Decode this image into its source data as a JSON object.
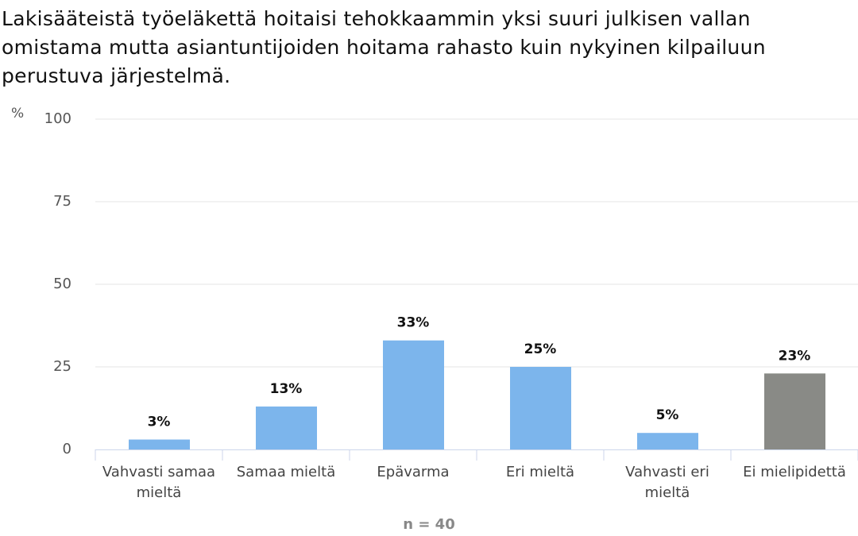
{
  "chart_data": {
    "type": "bar",
    "title": "Lakisääteistä työeläkettä hoitaisi tehokkaammin yksi suuri julkisen vallan omistama mutta asiantuntijoiden hoitama rahasto kuin nykyinen kilpailuun perustuva järjestelmä.",
    "y_label": "%",
    "categories": [
      "Vahvasti samaa mieltä",
      "Samaa mieltä",
      "Epävarma",
      "Eri mieltä",
      "Vahvasti eri mieltä",
      "Ei mielipidettä"
    ],
    "values": [
      3,
      13,
      33,
      25,
      5,
      23
    ],
    "value_labels": [
      "3%",
      "13%",
      "33%",
      "25%",
      "5%",
      "23%"
    ],
    "colors": [
      "#7cb5ec",
      "#7cb5ec",
      "#7cb5ec",
      "#7cb5ec",
      "#7cb5ec",
      "#898a86"
    ],
    "ylim": [
      0,
      100
    ],
    "yticks": [
      0,
      25,
      50,
      75,
      100
    ],
    "grid": true,
    "note": "n = 40"
  }
}
